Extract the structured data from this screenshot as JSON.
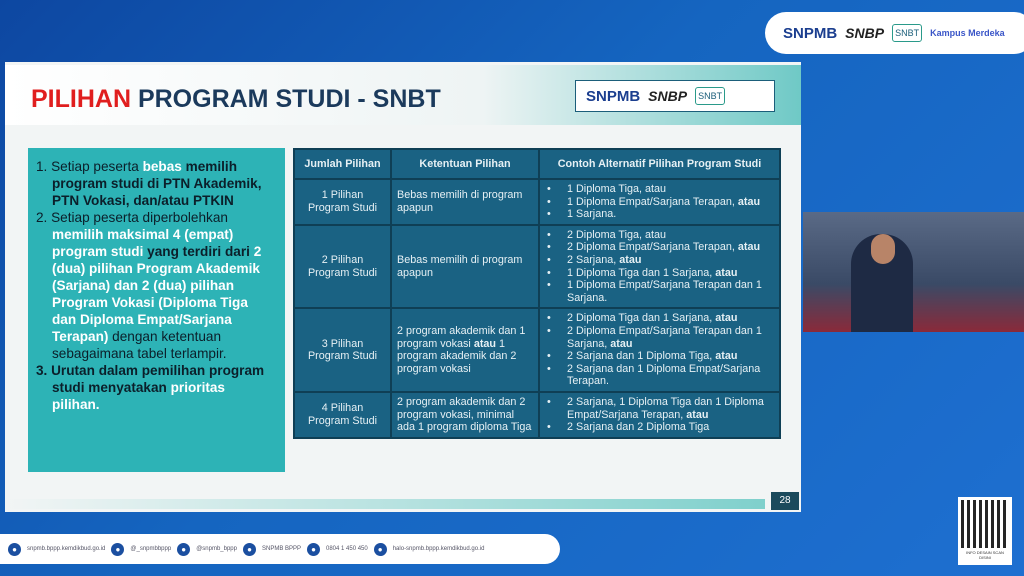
{
  "logos": {
    "snpmb": "SNPMB",
    "snbp": "SNBP",
    "snbt": "SNBT",
    "kampus": "Kampus Merdeka"
  },
  "slide": {
    "title_red": "PILIHAN",
    "title_rest": " PROGRAM STUDI - SNBT",
    "page_number": "28",
    "points": [
      [
        {
          "t": "1. Setiap peserta ",
          "s": "n"
        },
        {
          "t": "bebas",
          "s": "w"
        },
        {
          "t": " memilih program studi di PTN Akademik, PTN Vokasi, dan/atau PTKIN",
          "s": "b"
        }
      ],
      [
        {
          "t": "2. Setiap peserta diperbolehkan ",
          "s": "n"
        },
        {
          "t": "memilih maksimal 4 (empat) program studi",
          "s": "w"
        },
        {
          "t": " yang terdiri dari ",
          "s": "b"
        },
        {
          "t": "2 (dua) pilihan Program Akademik (Sarjana) dan 2 (dua) pilihan Program Vokasi (Diploma Tiga dan Diploma Empat/Sarjana Terapan)",
          "s": "w"
        },
        {
          "t": " dengan ketentuan sebagaimana tabel terlampir.",
          "s": "n"
        }
      ],
      [
        {
          "t": "3. Urutan dalam pemilihan program studi menyatakan ",
          "s": "b"
        },
        {
          "t": "prioritas pilihan.",
          "s": "w"
        }
      ]
    ],
    "table": {
      "headers": [
        "Jumlah Pilihan",
        "Ketentuan Pilihan",
        "Contoh Alternatif Pilihan Program Studi"
      ],
      "rows": [
        {
          "jumlah": "1 Pilihan Program Studi",
          "ketentuan": [
            {
              "t": "Bebas memilih di program apapun"
            }
          ],
          "contoh": [
            [
              {
                "t": "1 Diploma Tiga, atau"
              }
            ],
            [
              {
                "t": "1 Diploma Empat/Sarjana Terapan, "
              },
              {
                "t": "atau",
                "b": true
              }
            ],
            [
              {
                "t": "1 Sarjana."
              }
            ]
          ]
        },
        {
          "jumlah": "2 Pilihan Program Studi",
          "ketentuan": [
            {
              "t": "Bebas memilih di program apapun"
            }
          ],
          "contoh": [
            [
              {
                "t": "2 Diploma Tiga, atau"
              }
            ],
            [
              {
                "t": "2 Diploma Empat/Sarjana Terapan, "
              },
              {
                "t": "atau",
                "b": true
              }
            ],
            [
              {
                "t": "2 Sarjana, "
              },
              {
                "t": "atau",
                "b": true
              }
            ],
            [
              {
                "t": "1 Diploma Tiga dan 1 Sarjana, "
              },
              {
                "t": "atau",
                "b": true
              }
            ],
            [
              {
                "t": "1 Diploma Empat/Sarjana Terapan dan 1 Sarjana."
              }
            ]
          ]
        },
        {
          "jumlah": "3 Pilihan Program Studi",
          "ketentuan": [
            {
              "t": "2 program akademik dan 1 program vokasi "
            },
            {
              "t": "atau",
              "b": true
            },
            {
              "t": " 1 program akademik dan 2 program vokasi"
            }
          ],
          "contoh": [
            [
              {
                "t": "2 Diploma Tiga dan 1 Sarjana, "
              },
              {
                "t": "atau",
                "b": true
              }
            ],
            [
              {
                "t": "2 Diploma Empat/Sarjana Terapan dan 1 Sarjana, "
              },
              {
                "t": "atau",
                "b": true
              }
            ],
            [
              {
                "t": "2 Sarjana dan 1 Diploma Tiga, "
              },
              {
                "t": "atau",
                "b": true
              }
            ],
            [
              {
                "t": "2 Sarjana dan 1 Diploma Empat/Sarjana Terapan."
              }
            ]
          ]
        },
        {
          "jumlah": "4 Pilihan Program Studi",
          "ketentuan": [
            {
              "t": "2 program akademik dan 2 program vokasi, minimal ada 1 program diploma Tiga"
            }
          ],
          "contoh": [
            [
              {
                "t": "2 Sarjana, 1 Diploma Tiga dan 1 Diploma Empat/Sarjana Terapan, "
              },
              {
                "t": "atau",
                "b": true
              }
            ],
            [
              {
                "t": "2 Sarjana dan 2 Diploma Tiga"
              }
            ]
          ]
        }
      ]
    }
  },
  "footer": {
    "items": [
      {
        "icon": "globe-icon",
        "text": "snpmb.bppp.kemdikbud.go.id"
      },
      {
        "icon": "instagram-icon",
        "text": "@_snpmbbppp"
      },
      {
        "icon": "x-tiktok-icon",
        "text": "@snpmb_bppp"
      },
      {
        "icon": "facebook-youtube-icon",
        "text": "SNPMB BPPP"
      },
      {
        "icon": "phone-icon",
        "text": "0804 1 450 450"
      },
      {
        "icon": "email-icon",
        "text": "halo-snpmb.bppp.kemdikbud.go.id"
      }
    ]
  },
  "qr": {
    "caption": "INFO DESAIN SCAN DISINI"
  }
}
